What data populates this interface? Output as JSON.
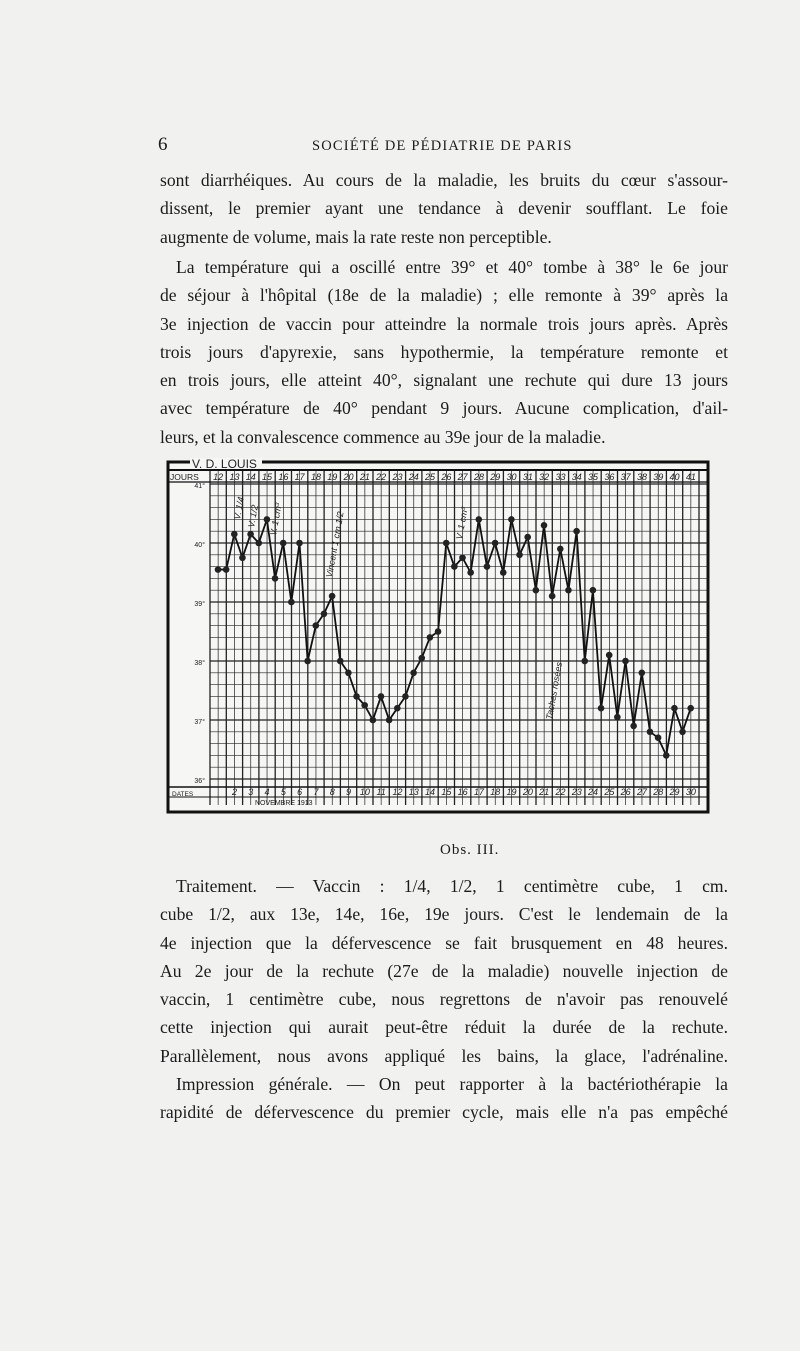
{
  "header": {
    "page_number": "6",
    "running_title": "SOCIÉTÉ DE PÉDIATRIE DE PARIS"
  },
  "paragraph1": [
    "sont diarrhéiques. Au cours de la maladie, les bruits du cœur s'assour-",
    "dissent, le premier ayant une tendance à devenir soufflant. Le foie",
    "augmente de volume, mais la rate reste non perceptible."
  ],
  "paragraph2": [
    "La température qui a oscillé entre 39° et 40° tombe à 38° le 6e jour",
    "de séjour à l'hôpital (18e de la maladie) ; elle remonte à 39° après la",
    "3e injection de vaccin pour atteindre la normale trois jours après. Après",
    "trois jours d'apyrexie, sans hypothermie, la température remonte et",
    "en trois jours, elle atteint 40°, signalant une rechute qui dure 13 jours",
    "avec température de 40° pendant 9 jours. Aucune complication, d'ail-",
    "leurs, et la convalescence commence au 39e jour de la maladie."
  ],
  "chart_data": {
    "type": "line",
    "title": "V. D. LOUIS",
    "row_labels": {
      "days": "JOURS",
      "dates": "DATES",
      "month": "NOVEMBRE 1913"
    },
    "days": [
      12,
      13,
      14,
      15,
      16,
      17,
      18,
      19,
      20,
      21,
      22,
      23,
      24,
      25,
      26,
      27,
      28,
      29,
      30,
      31,
      32,
      33,
      34,
      35,
      36,
      37,
      38,
      39,
      40,
      41
    ],
    "dates": [
      "",
      2,
      3,
      4,
      5,
      6,
      7,
      8,
      9,
      10,
      11,
      12,
      13,
      14,
      15,
      16,
      17,
      18,
      19,
      20,
      21,
      22,
      23,
      24,
      25,
      26,
      27,
      28,
      29,
      30
    ],
    "y_ticks": [
      "41°",
      "40°",
      "39°",
      "38°",
      "37°",
      "36°"
    ],
    "ylim": [
      36,
      41
    ],
    "readings_per_day": 2,
    "temperatures": [
      39.55,
      39.55,
      40.15,
      39.75,
      40.15,
      40.0,
      40.4,
      39.4,
      40.0,
      39.0,
      40.0,
      38.0,
      38.6,
      38.8,
      39.1,
      38.0,
      37.8,
      37.4,
      37.25,
      37.0,
      37.4,
      37.0,
      37.2,
      37.4,
      37.8,
      38.05,
      38.4,
      38.5,
      40.0,
      39.6,
      39.75,
      39.5,
      40.4,
      39.6,
      40.0,
      39.5,
      40.4,
      39.8,
      40.1,
      39.2,
      40.3,
      39.1,
      39.9,
      39.2,
      40.2,
      38.0,
      39.2,
      37.2,
      38.1,
      37.05,
      38.0,
      36.9,
      37.8,
      36.8,
      36.7,
      36.4,
      37.2,
      36.8,
      37.2
    ],
    "annotations": [
      "V. 1/4",
      "V. 1/2",
      "V. 1 cm³",
      "Vincent 1 cm 1/2",
      "V. 1 cm³",
      "Taches rosées"
    ],
    "grid": true
  },
  "caption": "Obs. III.",
  "paragraph3": [
    "Traitement. — Vaccin : 1/4, 1/2, 1 centimètre cube, 1 cm.",
    "cube 1/2, aux 13e, 14e, 16e, 19e jours. C'est le lendemain de la",
    "4e injection que la défervescence se fait brusquement en 48 heures.",
    "Au 2e jour de la rechute (27e de la maladie) nouvelle injection de",
    "vaccin, 1 centimètre cube, nous regrettons de n'avoir pas renouvelé",
    "cette injection qui aurait peut-être réduit la durée de la rechute.",
    "Parallèlement, nous avons appliqué les bains, la glace, l'adrénaline."
  ],
  "paragraph4": [
    "Impression générale. — On peut rapporter à la bactériothérapie la",
    "rapidité de défervescence du premier cycle, mais elle n'a pas empêché"
  ]
}
